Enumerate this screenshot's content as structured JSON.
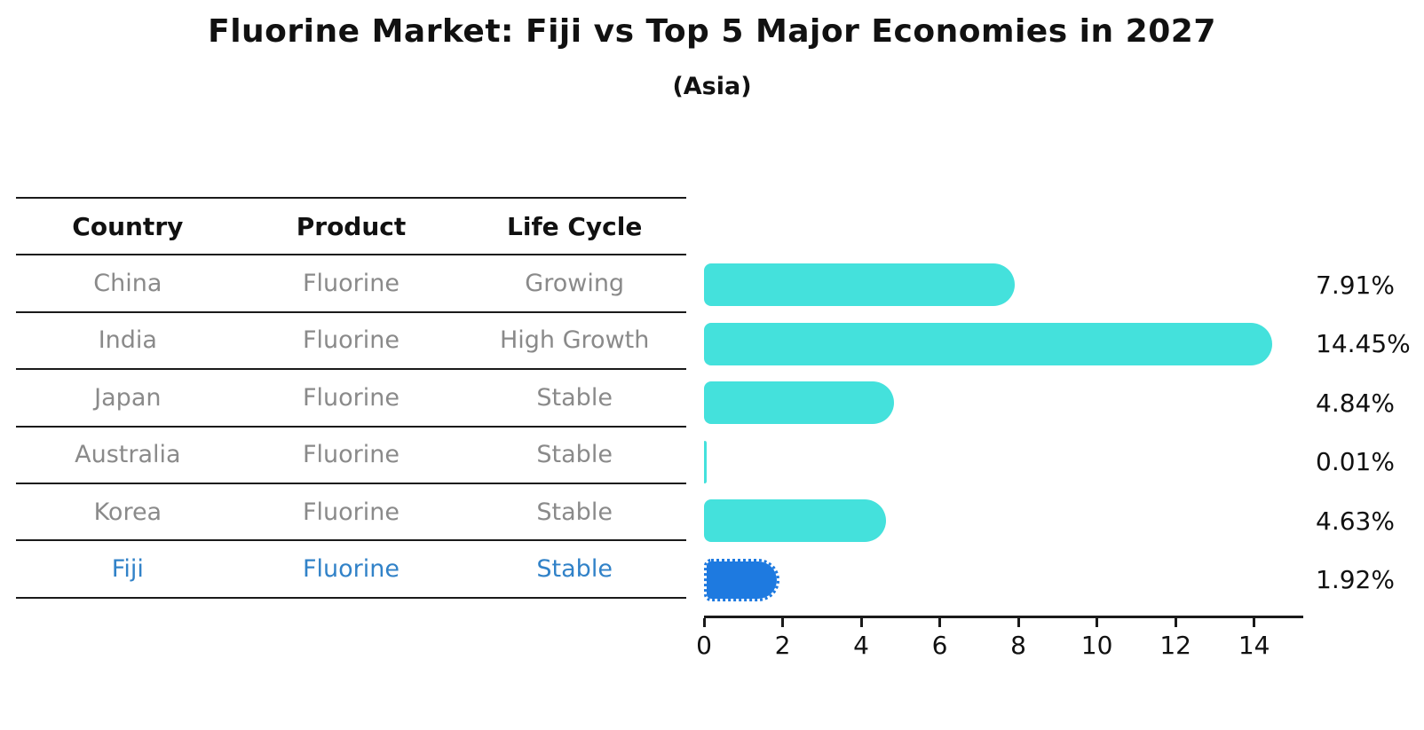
{
  "title": "Fluorine Market: Fiji vs Top 5 Major Economies in 2027",
  "subtitle": "(Asia)",
  "table": {
    "headers": [
      "Country",
      "Product",
      "Life Cycle"
    ],
    "rows": [
      {
        "country": "China",
        "product": "Fluorine",
        "life_cycle": "Growing",
        "highlight": false
      },
      {
        "country": "India",
        "product": "Fluorine",
        "life_cycle": "High Growth",
        "highlight": false
      },
      {
        "country": "Japan",
        "product": "Fluorine",
        "life_cycle": "Stable",
        "highlight": false
      },
      {
        "country": "Australia",
        "product": "Fluorine",
        "life_cycle": "Stable",
        "highlight": false
      },
      {
        "country": "Korea",
        "product": "Fluorine",
        "life_cycle": "Stable",
        "highlight": false
      },
      {
        "country": "Fiji",
        "product": "Fluorine",
        "life_cycle": "Stable",
        "highlight": true
      }
    ]
  },
  "chart_data": {
    "type": "bar",
    "orientation": "horizontal",
    "title": "Fluorine Market: Fiji vs Top 5 Major Economies in 2027",
    "subtitle": "(Asia)",
    "categories": [
      "China",
      "India",
      "Japan",
      "Australia",
      "Korea",
      "Fiji"
    ],
    "values": [
      7.91,
      14.45,
      4.84,
      0.01,
      4.63,
      1.92
    ],
    "value_labels": [
      "7.91%",
      "14.45%",
      "4.84%",
      "0.01%",
      "4.63%",
      "1.92%"
    ],
    "xlabel": "",
    "ylabel": "",
    "xlim": [
      0,
      15.25
    ],
    "x_ticks": [
      0,
      2,
      4,
      6,
      8,
      10,
      12,
      14
    ],
    "grid": false,
    "legend": false,
    "highlight_category": "Fiji"
  },
  "colors": {
    "bar_default": "#44E1DC",
    "bar_highlight": "#1E7AE0",
    "highlight_text": "#3182C8",
    "row_text": "#8a8a8a",
    "header_text": "#111111",
    "axis": "#1a1a1a"
  }
}
